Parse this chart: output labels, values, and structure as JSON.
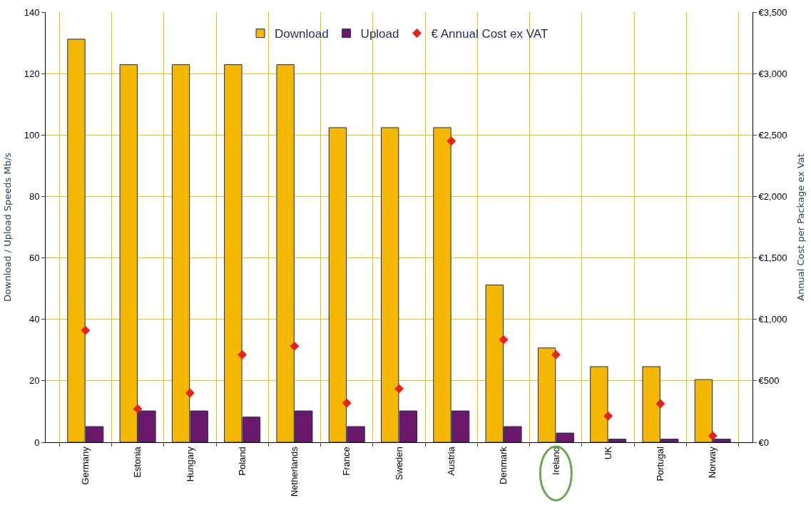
{
  "chart_data": {
    "type": "bar",
    "ylabel": "Download / Upload Speeds Mb/s",
    "y2label": "Annual Cost per Package ex Vat",
    "categories": [
      "Germany",
      "Estonia",
      "Hungary",
      "Poland",
      "Netherlands",
      "France",
      "Sweden",
      "Austria",
      "Denmark",
      "Ireland",
      "UK",
      "Portugal",
      "Norway"
    ],
    "series": [
      {
        "name": "Download",
        "color": "#f5b800",
        "values": [
          131.2,
          122.9,
          122.9,
          122.9,
          122.9,
          102.4,
          102.4,
          102.4,
          51.2,
          30.7,
          24.6,
          24.6,
          20.4
        ]
      },
      {
        "name": "Upload",
        "color": "#6b1a6b",
        "values": [
          5.1,
          10.2,
          10.2,
          8.2,
          10.2,
          5.1,
          10.2,
          10.2,
          5.1,
          3.0,
          1.0,
          1.0,
          1.0
        ]
      },
      {
        "name": "€ Annual Cost ex VAT",
        "color": "#e8231b",
        "type": "scatter",
        "axis": "y2",
        "marker": "diamond",
        "values": [
          910,
          272,
          400,
          713,
          782,
          319,
          435,
          2451,
          834,
          713,
          214,
          313,
          52
        ]
      }
    ],
    "ylim": [
      0,
      140
    ],
    "yticks": [
      0,
      20,
      40,
      60,
      80,
      100,
      120,
      140
    ],
    "y2lim": [
      0,
      3500
    ],
    "y2ticks": [
      {
        "value": 0,
        "label": "€0"
      },
      {
        "value": 500,
        "label": "€500"
      },
      {
        "value": 1000,
        "label": "€1,000"
      },
      {
        "value": 1500,
        "label": "€1,500"
      },
      {
        "value": 2000,
        "label": "€2,000"
      },
      {
        "value": 2500,
        "label": "€2,500"
      },
      {
        "value": 3000,
        "label": "€3,000"
      },
      {
        "value": 3500,
        "label": "€3,500"
      }
    ],
    "grid": true,
    "legend": "top"
  }
}
